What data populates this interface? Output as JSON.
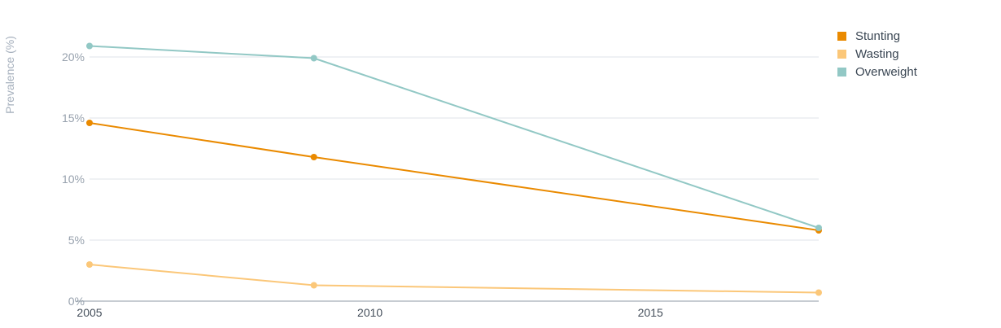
{
  "chart_data": {
    "type": "line",
    "title": "",
    "xlabel": "",
    "ylabel": "Prevalence (%)",
    "x": [
      2005,
      2009,
      2018
    ],
    "xlim": [
      2005,
      2018
    ],
    "xticks": [
      2005,
      2010,
      2015
    ],
    "xtick_labels": [
      "2005",
      "2010",
      "2015"
    ],
    "ylim": [
      0,
      22
    ],
    "yticks": [
      0,
      5,
      10,
      15,
      20
    ],
    "ytick_labels": [
      "0%",
      "5%",
      "10%",
      "15%",
      "20%"
    ],
    "grid": "horizontal",
    "legend_position": "top-right",
    "series": [
      {
        "name": "Stunting",
        "color": "#ea8a00",
        "values": [
          14.6,
          11.8,
          5.8
        ]
      },
      {
        "name": "Wasting",
        "color": "#fbc779",
        "values": [
          3.0,
          1.3,
          0.7
        ]
      },
      {
        "name": "Overweight",
        "color": "#92c8c5",
        "values": [
          20.9,
          19.9,
          6.0
        ]
      }
    ]
  }
}
